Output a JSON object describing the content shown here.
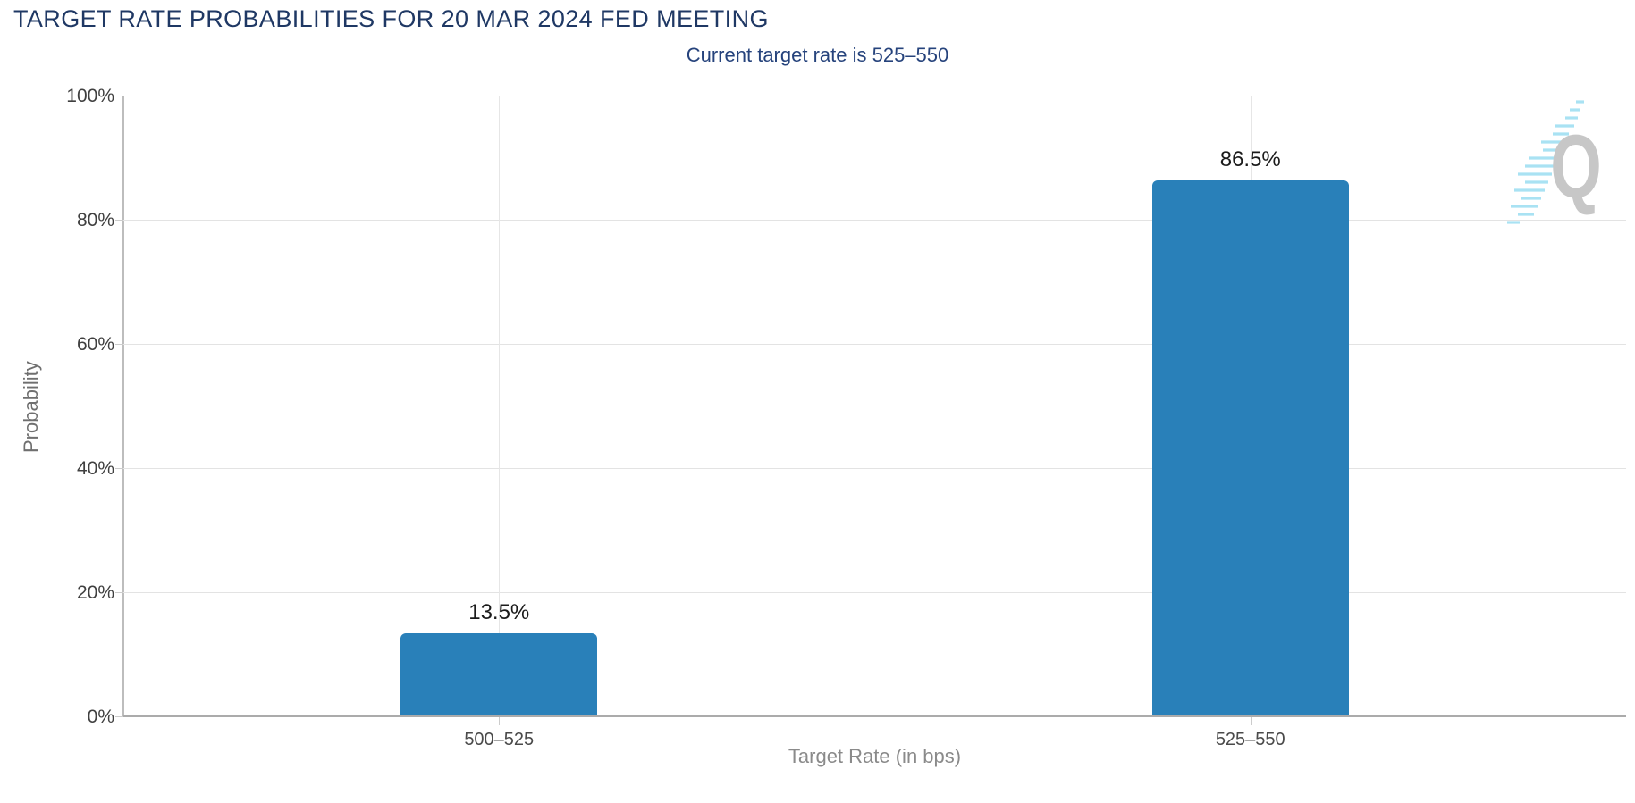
{
  "chart_data": {
    "type": "bar",
    "title": "TARGET RATE PROBABILITIES FOR 20 MAR 2024 FED MEETING",
    "subtitle": "Current target rate is 525–550",
    "categories": [
      "500–525",
      "525–550"
    ],
    "values": [
      13.5,
      86.5
    ],
    "value_labels": [
      "13.5%",
      "86.5%"
    ],
    "xlabel": "Target Rate (in bps)",
    "ylabel": "Probability",
    "ylim": [
      0,
      100
    ],
    "ytick_values": [
      0,
      20,
      40,
      60,
      80,
      100
    ],
    "yticks": [
      "0%",
      "20%",
      "40%",
      "60%",
      "80%",
      "100%"
    ],
    "grid": true,
    "legend": false,
    "bar_color": "#2980b9"
  },
  "watermark": {
    "letter": "Q"
  },
  "colors": {
    "bar": "#2980b9",
    "title_text": "#1f3864",
    "subtitle_text": "#26437c",
    "gridline": "#e3e3e3",
    "axis_line": "#ababab",
    "tick_label": "#404040",
    "category_label": "#4a4a4a",
    "axis_title": "#8a8a8a",
    "value_label": "#1b1b1b",
    "watermark_q": "#c7c7c7",
    "watermark_dash": "#a9e2f3"
  }
}
